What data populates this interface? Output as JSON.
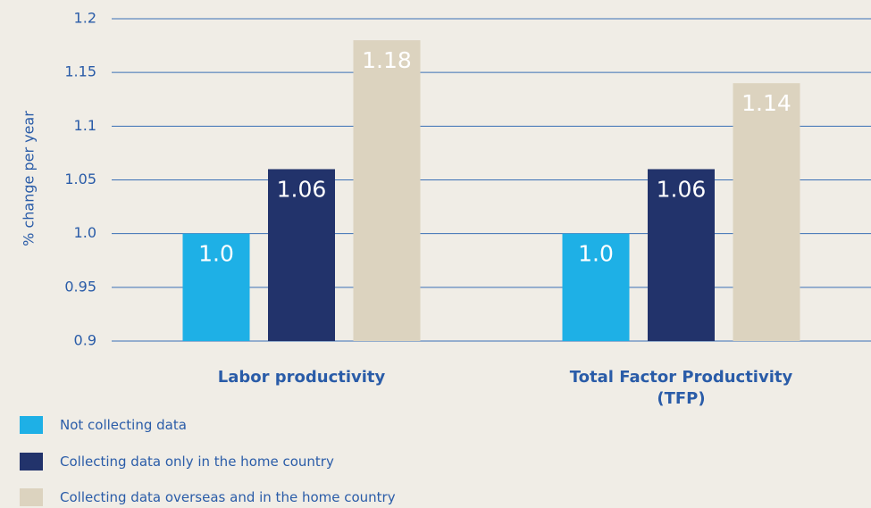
{
  "chart_data": {
    "type": "bar",
    "y_label": "% change per year",
    "categories": [
      "Labor productivity",
      "Total Factor Productivity (TFP)"
    ],
    "series": [
      {
        "name": "Not collecting data",
        "color": "#1eb0e6",
        "values": [
          1,
          1
        ],
        "value_labels": [
          "1.0",
          "1.0"
        ]
      },
      {
        "name": "Collecting data only in the home country",
        "color": "#22336b",
        "values": [
          1.06,
          1.06
        ],
        "value_labels": [
          "1.06",
          "1.06"
        ]
      },
      {
        "name": "Collecting data overseas and in the home country",
        "color": "#dcd3bf",
        "values": [
          1.18,
          1.14
        ],
        "value_labels": [
          "1.18",
          "1.14"
        ]
      }
    ],
    "ylim": [
      0.9,
      1.2
    ],
    "yticks": [
      0.9,
      0.95,
      {
        "value": 1,
        "label": "1.0"
      },
      1.05,
      1.1,
      1.15,
      1.2
    ],
    "grid": true
  }
}
